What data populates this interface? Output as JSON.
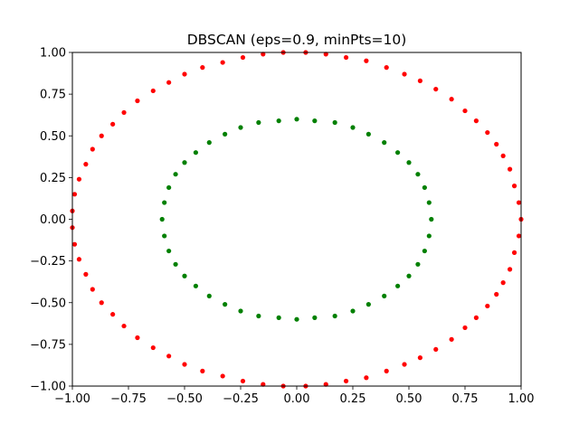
{
  "chart_data": {
    "type": "scatter",
    "title": "DBSCAN (eps=0.9, minPts=10)",
    "xlabel": "",
    "ylabel": "",
    "xlim": [
      -1.0,
      1.0
    ],
    "ylim": [
      -1.0,
      1.0
    ],
    "grid": false,
    "legend": "none",
    "xticks": [
      "−1.00",
      "−0.75",
      "−0.50",
      "−0.25",
      "0.00",
      "0.25",
      "0.50",
      "0.75",
      "1.00"
    ],
    "yticks": [
      "−1.00",
      "−0.75",
      "−0.50",
      "−0.25",
      "0.00",
      "0.25",
      "0.50",
      "0.75",
      "1.00"
    ],
    "series": [
      {
        "color": "#ff0000",
        "points": [
          [
            1.0,
            0.0
          ],
          [
            0.99,
            0.1
          ],
          [
            0.99,
            -0.1
          ],
          [
            0.97,
            0.2
          ],
          [
            0.97,
            -0.2
          ],
          [
            0.95,
            0.3
          ],
          [
            0.95,
            -0.3
          ],
          [
            0.92,
            0.38
          ],
          [
            0.92,
            -0.38
          ],
          [
            0.89,
            0.45
          ],
          [
            0.89,
            -0.45
          ],
          [
            0.85,
            0.52
          ],
          [
            0.85,
            -0.52
          ],
          [
            0.8,
            0.59
          ],
          [
            0.8,
            -0.59
          ],
          [
            0.75,
            0.65
          ],
          [
            0.75,
            -0.65
          ],
          [
            0.69,
            0.72
          ],
          [
            0.69,
            -0.72
          ],
          [
            0.62,
            0.78
          ],
          [
            0.62,
            -0.78
          ],
          [
            0.55,
            0.83
          ],
          [
            0.55,
            -0.83
          ],
          [
            0.48,
            0.87
          ],
          [
            0.48,
            -0.87
          ],
          [
            0.4,
            0.91
          ],
          [
            0.4,
            -0.91
          ],
          [
            0.31,
            0.95
          ],
          [
            0.31,
            -0.95
          ],
          [
            0.22,
            0.97
          ],
          [
            0.22,
            -0.97
          ],
          [
            0.13,
            0.99
          ],
          [
            0.13,
            -0.99
          ],
          [
            0.04,
            1.0
          ],
          [
            0.04,
            -1.0
          ],
          [
            -0.06,
            1.0
          ],
          [
            -0.06,
            -1.0
          ],
          [
            -0.15,
            0.99
          ],
          [
            -0.15,
            -0.99
          ],
          [
            -0.24,
            0.97
          ],
          [
            -0.24,
            -0.97
          ],
          [
            -0.33,
            0.94
          ],
          [
            -0.33,
            -0.94
          ],
          [
            -0.42,
            0.91
          ],
          [
            -0.42,
            -0.91
          ],
          [
            -0.5,
            0.87
          ],
          [
            -0.5,
            -0.87
          ],
          [
            -0.57,
            0.82
          ],
          [
            -0.57,
            -0.82
          ],
          [
            -0.64,
            0.77
          ],
          [
            -0.64,
            -0.77
          ],
          [
            -0.71,
            0.71
          ],
          [
            -0.71,
            -0.71
          ],
          [
            -0.77,
            0.64
          ],
          [
            -0.77,
            -0.64
          ],
          [
            -0.82,
            0.57
          ],
          [
            -0.82,
            -0.57
          ],
          [
            -0.87,
            0.5
          ],
          [
            -0.87,
            -0.5
          ],
          [
            -0.91,
            0.42
          ],
          [
            -0.91,
            -0.42
          ],
          [
            -0.94,
            0.33
          ],
          [
            -0.94,
            -0.33
          ],
          [
            -0.97,
            0.24
          ],
          [
            -0.97,
            -0.24
          ],
          [
            -0.99,
            0.15
          ],
          [
            -0.99,
            -0.15
          ],
          [
            -1.0,
            0.05
          ],
          [
            -1.0,
            -0.05
          ]
        ]
      },
      {
        "color": "#008000",
        "points": [
          [
            0.6,
            0.0
          ],
          [
            0.59,
            0.1
          ],
          [
            0.59,
            -0.1
          ],
          [
            0.57,
            0.19
          ],
          [
            0.57,
            -0.19
          ],
          [
            0.54,
            0.27
          ],
          [
            0.54,
            -0.27
          ],
          [
            0.5,
            0.34
          ],
          [
            0.5,
            -0.34
          ],
          [
            0.45,
            0.4
          ],
          [
            0.45,
            -0.4
          ],
          [
            0.39,
            0.46
          ],
          [
            0.39,
            -0.46
          ],
          [
            0.32,
            0.51
          ],
          [
            0.32,
            -0.51
          ],
          [
            0.25,
            0.55
          ],
          [
            0.25,
            -0.55
          ],
          [
            0.17,
            0.58
          ],
          [
            0.17,
            -0.58
          ],
          [
            0.08,
            0.59
          ],
          [
            0.08,
            -0.59
          ],
          [
            0.0,
            0.6
          ],
          [
            0.0,
            -0.6
          ],
          [
            -0.08,
            0.59
          ],
          [
            -0.08,
            -0.59
          ],
          [
            -0.17,
            0.58
          ],
          [
            -0.17,
            -0.58
          ],
          [
            -0.25,
            0.55
          ],
          [
            -0.25,
            -0.55
          ],
          [
            -0.32,
            0.51
          ],
          [
            -0.32,
            -0.51
          ],
          [
            -0.39,
            0.46
          ],
          [
            -0.39,
            -0.46
          ],
          [
            -0.45,
            0.4
          ],
          [
            -0.45,
            -0.4
          ],
          [
            -0.5,
            0.34
          ],
          [
            -0.5,
            -0.34
          ],
          [
            -0.54,
            0.27
          ],
          [
            -0.54,
            -0.27
          ],
          [
            -0.57,
            0.19
          ],
          [
            -0.57,
            -0.19
          ],
          [
            -0.59,
            0.1
          ],
          [
            -0.59,
            -0.1
          ],
          [
            -0.6,
            0.0
          ]
        ]
      }
    ]
  }
}
